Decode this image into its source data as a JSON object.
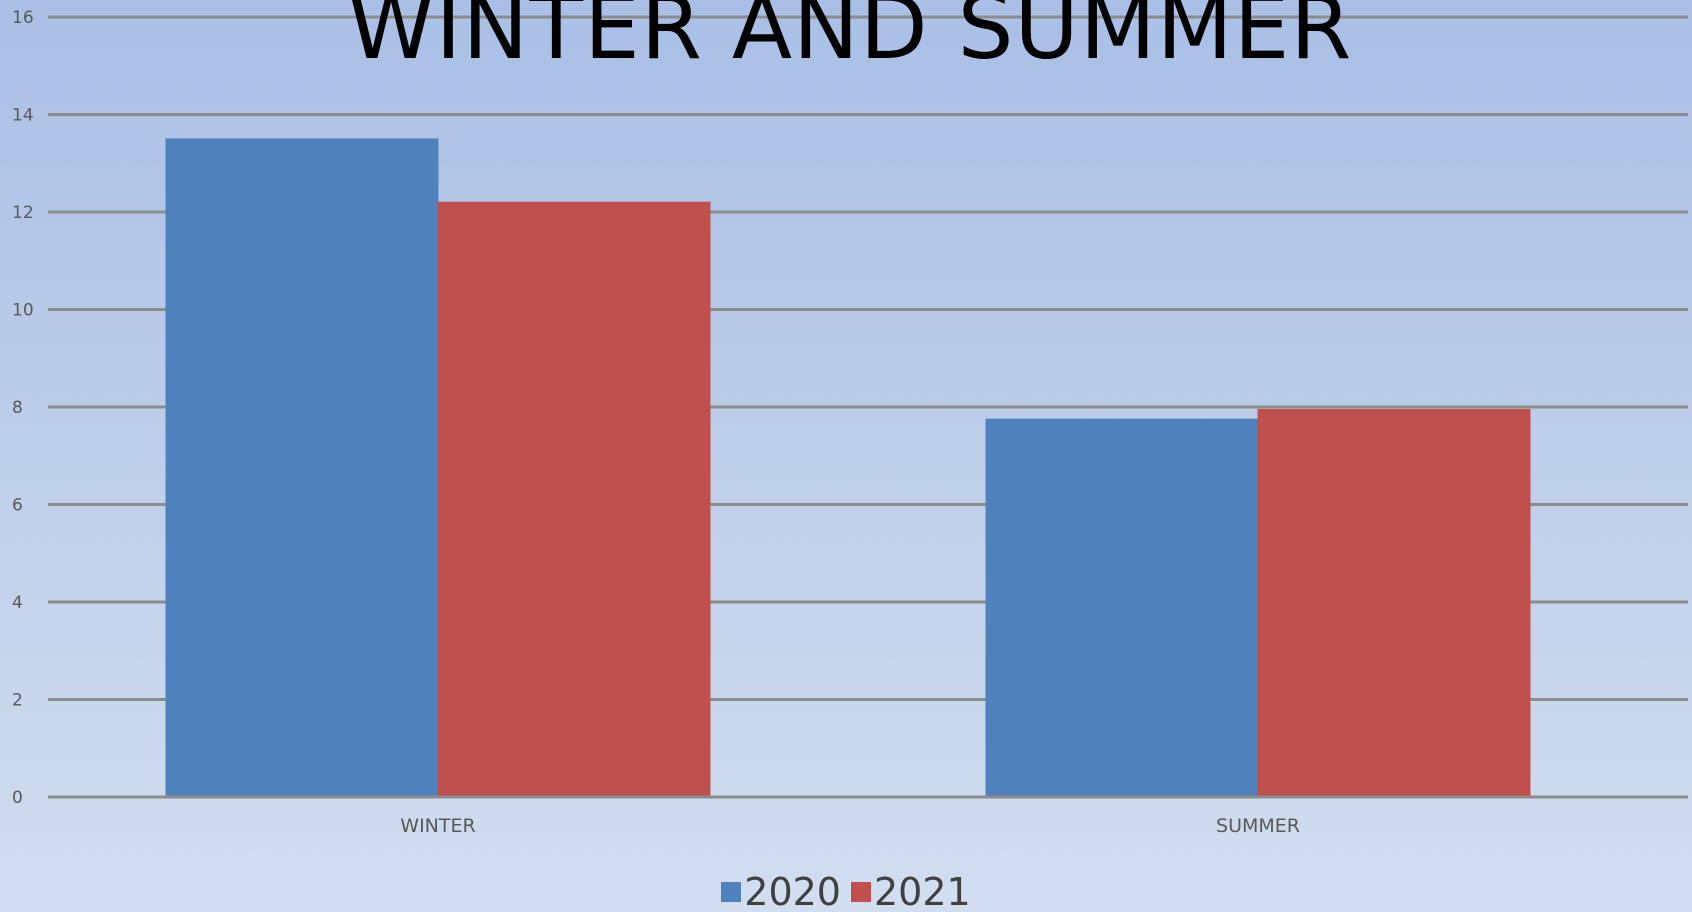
{
  "chart_data": {
    "type": "bar",
    "title": "WINTER AND SUMMER",
    "categories": [
      "WINTER",
      "SUMMER"
    ],
    "series": [
      {
        "name": "2020",
        "values": [
          13.5,
          7.75
        ],
        "color": "#4f81bd"
      },
      {
        "name": "2021",
        "values": [
          12.2,
          7.95
        ],
        "color": "#c0504d"
      }
    ],
    "xlabel": "",
    "ylabel": "",
    "ylim": [
      0,
      16
    ],
    "yticks": [
      "0",
      "2",
      "4",
      "6",
      "8",
      "10",
      "12",
      "14",
      "16"
    ],
    "grid": true,
    "legend_position": "bottom",
    "gridline_color": "#8c8c8c"
  }
}
